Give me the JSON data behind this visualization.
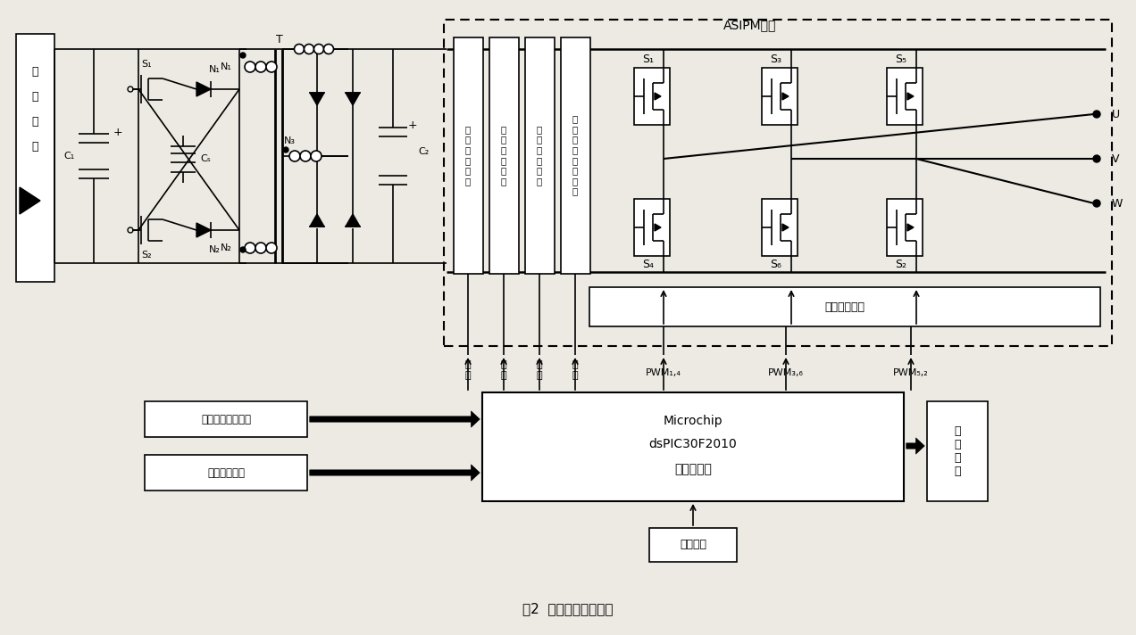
{
  "caption": "图2  主电路及硬件构成",
  "bg": "#eceae3",
  "prot_boxes": [
    {
      "label": "故\n障\n输\n出\n电\n路"
    },
    {
      "label": "过\n热\n保\n护\n电\n路"
    },
    {
      "label": "欠\n压\n保\n护\n电\n路"
    },
    {
      "label": "过\n流\n短\n路\n保\n护\n电\n路"
    }
  ],
  "phase_labels_up": [
    "S₁",
    "S₃",
    "S₅"
  ],
  "phase_labels_lo": [
    "S₄",
    "S₆",
    "S₂"
  ],
  "uvw": [
    "U",
    "V",
    "W"
  ],
  "pwm_labels": [
    "PWM₁,₄",
    "PWM₃,₆",
    "PWM₅,₂"
  ],
  "sig_labels": [
    "故\n障",
    "过\n热",
    "欠\n压",
    "过\n流"
  ],
  "dsp_lines": [
    "Microchip",
    "dsPIC30F2010",
    "中央处理器"
  ],
  "asipm_label": "ASIPM模块",
  "iso_label": "隔离驱动电路",
  "alarm_label": "报\n警\n电\n路",
  "power_label": "控制电源",
  "sensor1": "阵列母线电压检测",
  "sensor2": "水位打干检测"
}
